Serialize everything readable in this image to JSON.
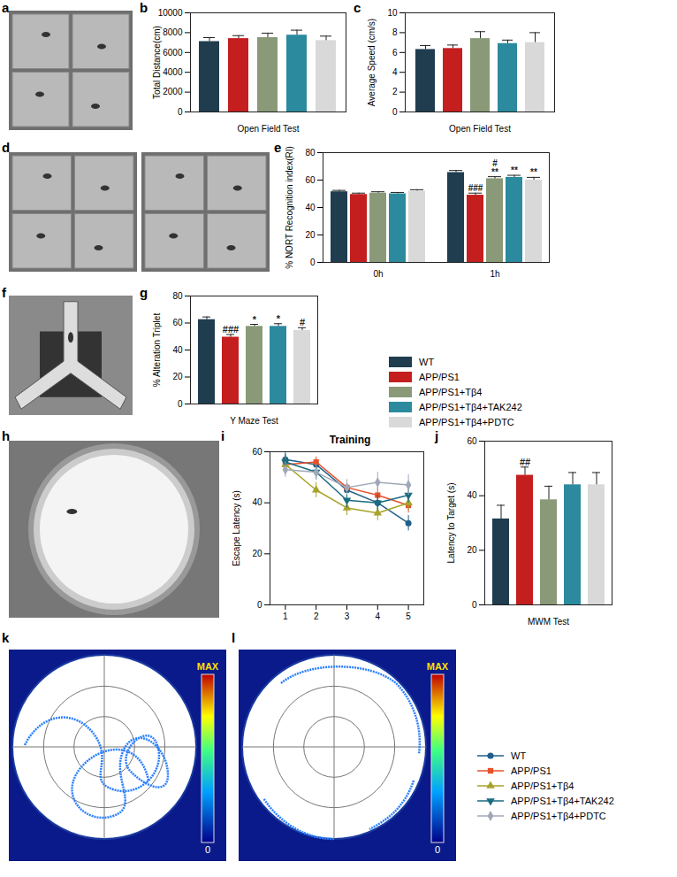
{
  "chart_data": [
    {
      "panel": "b",
      "type": "bar",
      "x_label": "Open Field Test",
      "y_label": "Total Distance(cm)",
      "categories": [
        "WT",
        "APP/PS1",
        "APP/PS1+Tβ4",
        "APP/PS1+Tβ4+TAK242",
        "APP/PS1+Tβ4+PDTC"
      ],
      "colors": [
        "#1f3d4f",
        "#c41e1e",
        "#8a9a78",
        "#2b8a9e",
        "#d9d9d9"
      ],
      "values": [
        7100,
        7400,
        7500,
        7750,
        7200
      ],
      "errors": [
        400,
        300,
        450,
        500,
        450
      ],
      "ylim": [
        0,
        10000
      ],
      "yticks": [
        0,
        2000,
        4000,
        6000,
        8000,
        10000
      ],
      "tick_labels": "y"
    },
    {
      "panel": "c",
      "type": "bar",
      "x_label": "Open Field Test",
      "y_label": "Average Speed (cm/s)",
      "categories": [
        "WT",
        "APP/PS1",
        "APP/PS1+Tβ4",
        "APP/PS1+Tβ4+TAK242",
        "APP/PS1+Tβ4+PDTC"
      ],
      "colors": [
        "#1f3d4f",
        "#c41e1e",
        "#8a9a78",
        "#2b8a9e",
        "#d9d9d9"
      ],
      "values": [
        6.3,
        6.4,
        7.4,
        6.9,
        7.0
      ],
      "errors": [
        0.4,
        0.35,
        0.7,
        0.35,
        1.0
      ],
      "ylim": [
        0,
        10
      ],
      "yticks": [
        0,
        2,
        4,
        6,
        8,
        10
      ],
      "tick_labels": "y"
    },
    {
      "panel": "e",
      "type": "bar",
      "y_label": "% NORT Recognition index(RI)",
      "categories": [
        "0h",
        "1h"
      ],
      "series": [
        {
          "name": "WT",
          "color": "#1f3d4f",
          "values": [
            51.5,
            65.5
          ],
          "errors": [
            1,
            1.5
          ]
        },
        {
          "name": "APP/PS1",
          "color": "#c41e1e",
          "values": [
            49.5,
            49
          ],
          "errors": [
            1,
            1.5
          ]
        },
        {
          "name": "APP/PS1+Tβ4",
          "color": "#8a9a78",
          "values": [
            50.5,
            61
          ],
          "errors": [
            1,
            1.5
          ]
        },
        {
          "name": "APP/PS1+Tβ4+TAK242",
          "color": "#2b8a9e",
          "values": [
            50,
            62
          ],
          "errors": [
            1,
            1.5
          ]
        },
        {
          "name": "APP/PS1+Tβ4+PDTC",
          "color": "#d9d9d9",
          "values": [
            52,
            60
          ],
          "errors": [
            1,
            2
          ]
        }
      ],
      "annotations": [
        {
          "category": "1h",
          "series": "APP/PS1",
          "text": "###"
        },
        {
          "category": "1h",
          "series": "APP/PS1+Tβ4",
          "text": "#\n**"
        },
        {
          "category": "1h",
          "series": "APP/PS1+Tβ4+TAK242",
          "text": "**"
        },
        {
          "category": "1h",
          "series": "APP/PS1+Tβ4+PDTC",
          "text": "**"
        }
      ],
      "ylim": [
        0,
        80
      ],
      "yticks": [
        0,
        20,
        40,
        60,
        80
      ]
    },
    {
      "panel": "g",
      "type": "bar",
      "x_label": "Y Maze Test",
      "y_label": "% Alteration Triplet",
      "categories": [
        "WT",
        "APP/PS1",
        "APP/PS1+Tβ4",
        "APP/PS1+Tβ4+TAK242",
        "APP/PS1+Tβ4+PDTC"
      ],
      "colors": [
        "#1f3d4f",
        "#c41e1e",
        "#8a9a78",
        "#2b8a9e",
        "#d9d9d9"
      ],
      "values": [
        62.5,
        49.5,
        57.5,
        57.5,
        54.5
      ],
      "errors": [
        2,
        2,
        1.5,
        2,
        2
      ],
      "annotations": [
        {
          "category": "APP/PS1",
          "text": "###"
        },
        {
          "category": "APP/PS1+Tβ4",
          "text": "*"
        },
        {
          "category": "APP/PS1+Tβ4+TAK242",
          "text": "*"
        },
        {
          "category": "APP/PS1+Tβ4+PDTC",
          "text": "#"
        }
      ],
      "ylim": [
        0,
        80
      ],
      "yticks": [
        0,
        20,
        40,
        60,
        80
      ],
      "tick_labels": "y",
      "legend": "right"
    },
    {
      "panel": "i",
      "type": "line",
      "title": "Training",
      "y_label": "Escape Latency (s)",
      "x": [
        1,
        2,
        3,
        4,
        5
      ],
      "series": [
        {
          "name": "WT",
          "color": "#1f5f8b",
          "marker": "circle",
          "values": [
            57,
            55,
            45,
            40,
            32
          ],
          "errors": [
            3,
            2,
            3,
            3,
            3
          ]
        },
        {
          "name": "APP/PS1",
          "color": "#e8502a",
          "marker": "square",
          "values": [
            55,
            56,
            46,
            43,
            39
          ],
          "errors": [
            3,
            2,
            3,
            3,
            3
          ]
        },
        {
          "name": "APP/PS1+Tβ4",
          "color": "#a8a32a",
          "marker": "triangle",
          "values": [
            55,
            45,
            38,
            36,
            40
          ],
          "errors": [
            3,
            3,
            3,
            3,
            3
          ]
        },
        {
          "name": "APP/PS1+Tβ4+TAK242",
          "color": "#1a6b80",
          "marker": "triangle-down",
          "values": [
            56,
            52,
            41,
            40,
            43
          ],
          "errors": [
            3,
            3,
            3,
            3,
            3
          ]
        },
        {
          "name": "APP/PS1+Tβ4+PDTC",
          "color": "#a0a8b8",
          "marker": "diamond",
          "values": [
            53,
            52,
            46,
            48,
            47
          ],
          "errors": [
            3,
            3,
            3,
            4,
            4
          ]
        }
      ],
      "xlim": [
        0.5,
        5.5
      ],
      "xticks": [
        1,
        2,
        3,
        4,
        5
      ],
      "ylim": [
        0,
        60
      ],
      "yticks": [
        0,
        20,
        40,
        60
      ],
      "legend": "bottom"
    },
    {
      "panel": "j",
      "type": "bar",
      "x_label": "MWM Test",
      "y_label": "Latency to Target (s)",
      "categories": [
        "WT",
        "APP/PS1",
        "APP/PS1+Tβ4",
        "APP/PS1+Tβ4+TAK242",
        "APP/PS1+Tβ4+PDTC"
      ],
      "colors": [
        "#1f3d4f",
        "#c41e1e",
        "#8a9a78",
        "#2b8a9e",
        "#d9d9d9"
      ],
      "values": [
        31.5,
        47.5,
        38.5,
        44,
        44
      ],
      "errors": [
        5,
        3,
        5,
        4.5,
        4.5
      ],
      "annotations": [
        {
          "category": "APP/PS1",
          "text": "##"
        }
      ],
      "ylim": [
        0,
        60
      ],
      "yticks": [
        0,
        20,
        40,
        60
      ],
      "tick_labels": "y"
    }
  ],
  "images": [
    {
      "panel": "a"
    },
    {
      "panel": "d"
    },
    {
      "panel": "f"
    },
    {
      "panel": "h"
    },
    {
      "panel": "k",
      "color_bar": [
        "MAX",
        "0"
      ]
    },
    {
      "panel": "l",
      "color_bar": [
        "MAX",
        "0"
      ]
    }
  ]
}
